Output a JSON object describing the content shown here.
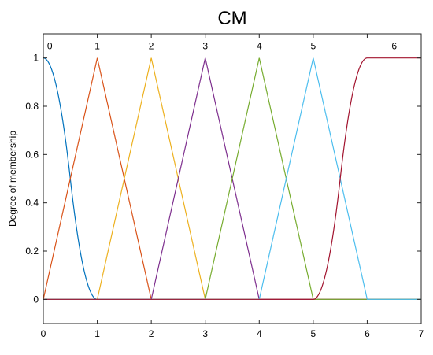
{
  "chart_data": {
    "type": "line",
    "title": "CM",
    "xlabel": "",
    "ylabel": "Degree of membership",
    "xlim": [
      0,
      7
    ],
    "ylim": [
      -0.1,
      1.1
    ],
    "xticks": [
      "0",
      "1",
      "2",
      "3",
      "4",
      "5",
      "6",
      "7"
    ],
    "yticks": [
      "0",
      "0.2",
      "0.4",
      "0.6",
      "0.8",
      "1"
    ],
    "grid": false,
    "series": [
      {
        "name": "0",
        "color": "#0072BD",
        "shape": "zmf",
        "params": [
          0,
          1
        ],
        "label_x": 0.12
      },
      {
        "name": "1",
        "color": "#D95319",
        "shape": "trimf",
        "params": [
          0,
          1,
          2
        ],
        "label_x": 1
      },
      {
        "name": "2",
        "color": "#EDB120",
        "shape": "trimf",
        "params": [
          1,
          2,
          3
        ],
        "label_x": 2
      },
      {
        "name": "3",
        "color": "#7E2F8E",
        "shape": "trimf",
        "params": [
          2,
          3,
          4
        ],
        "label_x": 3
      },
      {
        "name": "4",
        "color": "#77AC30",
        "shape": "trimf",
        "params": [
          3,
          4,
          5
        ],
        "label_x": 4
      },
      {
        "name": "5",
        "color": "#4DBEEE",
        "shape": "trimf",
        "params": [
          4,
          5,
          6
        ],
        "label_x": 5
      },
      {
        "name": "6",
        "color": "#A2142F",
        "shape": "smf",
        "params": [
          5,
          6
        ],
        "label_x": 6.5
      }
    ]
  }
}
